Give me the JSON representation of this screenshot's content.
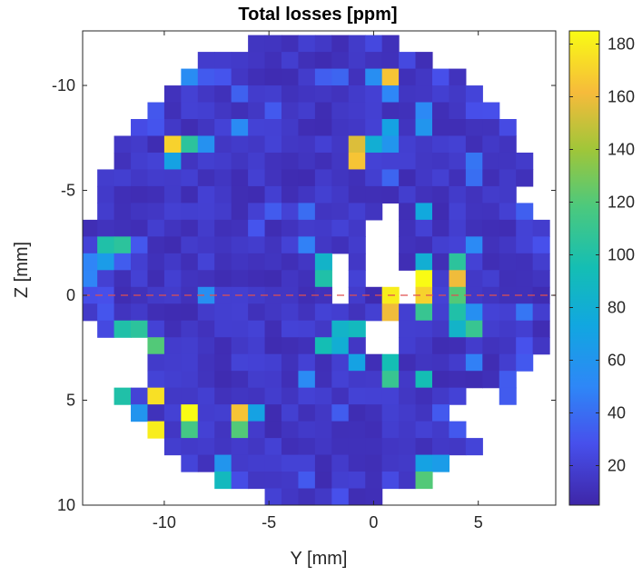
{
  "chart_data": {
    "type": "heatmap",
    "title": "Total losses [ppm]",
    "xlabel": "Y [mm]",
    "ylabel": "Z [mm]",
    "xlim": [
      -13.9,
      8.7
    ],
    "ylim": [
      -12.6,
      10
    ],
    "z_axis_reversed": true,
    "grid_step_mm": 0.8,
    "aperture": {
      "shape": "circle",
      "center_y": -2.6,
      "center_z": -1.3,
      "radius": 11.3
    },
    "background_value": 12,
    "crosshair": {
      "y": 0,
      "z": 0,
      "color": "#e05050",
      "style": "dashed"
    },
    "color_scale": {
      "colormap": "parula",
      "min": 5,
      "max": 185,
      "ticks": [
        20,
        40,
        60,
        80,
        100,
        120,
        140,
        160,
        180
      ],
      "tick_labels": [
        "20",
        "40",
        "60",
        "80",
        "100",
        "120",
        "140",
        "160",
        "180"
      ]
    },
    "x_ticks": [
      -10,
      -5,
      0,
      5
    ],
    "x_tick_labels": [
      "-10",
      "-5",
      "0",
      "5"
    ],
    "y_ticks": [
      -10,
      -5,
      0,
      5,
      10
    ],
    "y_tick_labels": [
      "-10",
      "-5",
      "0",
      "5",
      "10"
    ],
    "highlights": [
      {
        "y": 0.4,
        "z": -10.2,
        "value": 165
      },
      {
        "y": -0.4,
        "z": -10.2,
        "value": 55
      },
      {
        "y": 0.4,
        "z": -9.4,
        "value": 70
      },
      {
        "y": 1.2,
        "z": -9.8,
        "value": 50
      },
      {
        "y": 5.2,
        "z": -10.2,
        "value": 60
      },
      {
        "y": 6.0,
        "z": -9.4,
        "value": 75
      },
      {
        "y": -11.6,
        "z": -9.4,
        "value": 85
      },
      {
        "y": -11.6,
        "z": -8.6,
        "value": 75
      },
      {
        "y": -10.0,
        "z": -7.0,
        "value": 170
      },
      {
        "y": -9.2,
        "z": -7.0,
        "value": 105
      },
      {
        "y": -10.0,
        "z": -6.2,
        "value": 70
      },
      {
        "y": -1.2,
        "z": -7.0,
        "value": 155
      },
      {
        "y": -1.2,
        "z": -6.2,
        "value": 165
      },
      {
        "y": -0.4,
        "z": -7.0,
        "value": 80
      },
      {
        "y": 1.2,
        "z": -7.8,
        "value": 70
      },
      {
        "y": 2.0,
        "z": -7.8,
        "value": 60
      },
      {
        "y": 1.2,
        "z": -7.0,
        "value": 60
      },
      {
        "y": -13.2,
        "z": -2.6,
        "value": 100
      },
      {
        "y": -12.4,
        "z": -2.6,
        "value": 105
      },
      {
        "y": -13.2,
        "z": -1.8,
        "value": 65
      },
      {
        "y": 1.2,
        "z": -4.2,
        "value": 90
      },
      {
        "y": 2.0,
        "z": -4.2,
        "value": 75
      },
      {
        "y": 1.2,
        "z": -1.8,
        "value": 100
      },
      {
        "y": 2.0,
        "z": -1.8,
        "value": 80
      },
      {
        "y": 3.6,
        "z": -1.8,
        "value": 105
      },
      {
        "y": 3.6,
        "z": -1.0,
        "value": 160
      },
      {
        "y": 2.0,
        "z": -1.0,
        "value": 185
      },
      {
        "y": 3.6,
        "z": -0.2,
        "value": 120
      },
      {
        "y": 2.8,
        "z": -0.2,
        "value": 80
      },
      {
        "y": 1.2,
        "z": 0.2,
        "value": 180
      },
      {
        "y": 2.0,
        "z": 0.2,
        "value": 170
      },
      {
        "y": 2.8,
        "z": 0.6,
        "value": 120
      },
      {
        "y": 3.6,
        "z": 0.6,
        "value": 100
      },
      {
        "y": 1.2,
        "z": 1.0,
        "value": 160
      },
      {
        "y": 2.0,
        "z": 1.0,
        "value": 110
      },
      {
        "y": 3.6,
        "z": 1.4,
        "value": 85
      },
      {
        "y": 4.4,
        "z": 1.8,
        "value": 110
      },
      {
        "y": -2.8,
        "z": -1.8,
        "value": 85
      },
      {
        "y": -2.8,
        "z": -1.0,
        "value": 100
      },
      {
        "y": -2.0,
        "z": 1.4,
        "value": 85
      },
      {
        "y": -1.2,
        "z": 1.4,
        "value": 90
      },
      {
        "y": -0.4,
        "z": 1.4,
        "value": 80
      },
      {
        "y": -2.8,
        "z": 2.2,
        "value": 95
      },
      {
        "y": -2.0,
        "z": 2.2,
        "value": 80
      },
      {
        "y": -1.2,
        "z": 3.0,
        "value": 70
      },
      {
        "y": 1.2,
        "z": 2.2,
        "value": 80
      },
      {
        "y": 1.2,
        "z": 3.0,
        "value": 95
      },
      {
        "y": 1.2,
        "z": 3.8,
        "value": 110
      },
      {
        "y": 2.0,
        "z": 3.8,
        "value": 95
      },
      {
        "y": -12.4,
        "z": 1.4,
        "value": 100
      },
      {
        "y": -13.2,
        "z": 2.2,
        "value": 165
      },
      {
        "y": -13.2,
        "z": 3.0,
        "value": 60
      },
      {
        "y": -11.6,
        "z": 1.4,
        "value": 105
      },
      {
        "y": -10.8,
        "z": 2.2,
        "value": 120
      },
      {
        "y": -12.4,
        "z": 4.6,
        "value": 100
      },
      {
        "y": -10.8,
        "z": 4.6,
        "value": 175
      },
      {
        "y": -9.2,
        "z": 5.4,
        "value": 185
      },
      {
        "y": -9.2,
        "z": 6.2,
        "value": 115
      },
      {
        "y": -10.8,
        "z": 6.2,
        "value": 180
      },
      {
        "y": -6.8,
        "z": 5.4,
        "value": 165
      },
      {
        "y": -6.8,
        "z": 6.2,
        "value": 120
      },
      {
        "y": -6.0,
        "z": 5.4,
        "value": 70
      },
      {
        "y": -7.2,
        "z": 7.8,
        "value": 60
      },
      {
        "y": -8.4,
        "z": 8.6,
        "value": 175
      },
      {
        "y": -7.2,
        "z": 8.6,
        "value": 90
      },
      {
        "y": -7.2,
        "z": 9.8,
        "value": 165
      },
      {
        "y": 2.4,
        "z": 7.8,
        "value": 70
      },
      {
        "y": 2.4,
        "z": 8.6,
        "value": 120
      },
      {
        "y": 3.2,
        "z": 7.8,
        "value": 65
      },
      {
        "y": 3.6,
        "z": 5.4,
        "value": 70
      },
      {
        "y": 6.0,
        "z": 5.4,
        "value": 60
      },
      {
        "y": 6.0,
        "z": 6.2,
        "value": 90
      },
      {
        "y": 7.6,
        "z": 4.6,
        "value": 110
      }
    ],
    "empty_regions": [
      {
        "y0": 0.8,
        "y1": 1.6,
        "z0": -4.0,
        "z1": -1.2
      },
      {
        "y0": 0.0,
        "y1": 0.8,
        "z0": -3.2,
        "z1": -1.2
      },
      {
        "y0": 0.0,
        "y1": 1.6,
        "z0": -1.2,
        "z1": -0.4
      },
      {
        "y0": 1.6,
        "y1": 2.4,
        "z0": -1.2,
        "z1": 0.4
      },
      {
        "y0": -2.4,
        "y1": -0.8,
        "z0": -2.0,
        "z1": -1.2
      },
      {
        "y0": -1.6,
        "y1": -0.8,
        "z0": -1.2,
        "z1": 0.4
      },
      {
        "y0": -2.4,
        "y1": -1.6,
        "z0": -0.4,
        "z1": 0.4
      },
      {
        "y0": 0.0,
        "y1": 1.6,
        "z0": 1.6,
        "z1": 3.2
      },
      {
        "y0": 0.8,
        "y1": 1.6,
        "z0": 1.2,
        "z1": 1.6
      },
      {
        "y0": 7.2,
        "y1": 8.7,
        "z0": -5.4,
        "z1": -4.2
      },
      {
        "y0": 8.0,
        "y1": 8.7,
        "z0": -4.2,
        "z1": -3.4
      },
      {
        "y0": 8.0,
        "y1": 8.7,
        "z0": 2.8,
        "z1": 3.6
      },
      {
        "y0": 7.2,
        "y1": 8.0,
        "z0": 3.6,
        "z1": 4.4
      },
      {
        "y0": 4.8,
        "y1": 6.4,
        "z0": 4.8,
        "z1": 7.2
      },
      {
        "y0": 4.0,
        "y1": 4.8,
        "z0": 5.6,
        "z1": 6.4
      },
      {
        "y0": -13.9,
        "y1": -12.4,
        "z0": 3.4,
        "z1": 4.4
      },
      {
        "y0": -12.8,
        "y1": -11.2,
        "z0": 2.4,
        "z1": 4.4
      },
      {
        "y0": -11.2,
        "y1": -10.4,
        "z0": 2.8,
        "z1": 5.2
      },
      {
        "y0": -11.2,
        "y1": -9.6,
        "z0": 5.2,
        "z1": 5.6
      }
    ]
  }
}
